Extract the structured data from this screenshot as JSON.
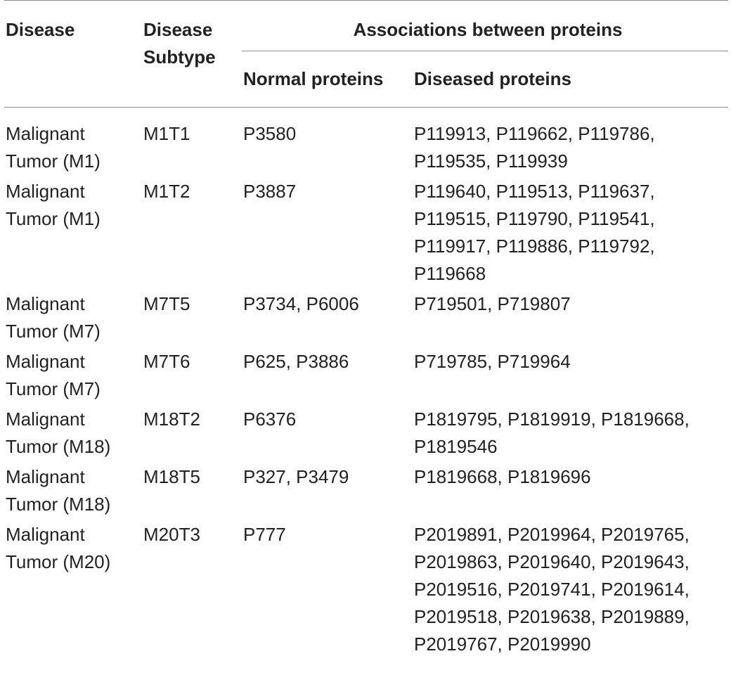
{
  "table": {
    "headers": {
      "disease": "Disease",
      "disease_subtype_line1": "Disease",
      "disease_subtype_line2": "Subtype",
      "associations": "Associations between proteins",
      "normal_proteins": "Normal proteins",
      "diseased_proteins": "Diseased proteins"
    },
    "rows": [
      {
        "disease_line1": "Malignant",
        "disease_line2": "Tumor (M1)",
        "subtype": "M1T1",
        "normal": "P3580",
        "diseased_lines": [
          "P119913, P119662, P119786,",
          "P119535, P119939"
        ]
      },
      {
        "disease_line1": "Malignant",
        "disease_line2": "Tumor (M1)",
        "subtype": "M1T2",
        "normal": "P3887",
        "diseased_lines": [
          "P119640, P119513, P119637,",
          "P119515, P119790, P119541,",
          "P119917, P119886, P119792,",
          "P119668"
        ]
      },
      {
        "disease_line1": "Malignant",
        "disease_line2": "Tumor (M7)",
        "subtype": "M7T5",
        "normal": "P3734, P6006",
        "diseased_lines": [
          "P719501, P719807"
        ]
      },
      {
        "disease_line1": "Malignant",
        "disease_line2": "Tumor (M7)",
        "subtype": "M7T6",
        "normal": "P625, P3886",
        "diseased_lines": [
          "P719785, P719964"
        ]
      },
      {
        "disease_line1": "Malignant",
        "disease_line2": "Tumor (M18)",
        "subtype": "M18T2",
        "normal": "P6376",
        "diseased_lines": [
          "P1819795, P1819919, P1819668,",
          "P1819546"
        ]
      },
      {
        "disease_line1": "Malignant",
        "disease_line2": "Tumor (M18)",
        "subtype": "M18T5",
        "normal": "P327, P3479",
        "diseased_lines": [
          "P1819668, P1819696"
        ]
      },
      {
        "disease_line1": "Malignant",
        "disease_line2": "Tumor (M20)",
        "subtype": "M20T3",
        "normal": "P777",
        "diseased_lines": [
          "P2019891, P2019964, P2019765,",
          "P2019863, P2019640, P2019643,",
          "P2019516, P2019741, P2019614,",
          "P2019518, P2019638, P2019889,",
          "P2019767, P2019990"
        ]
      }
    ]
  }
}
